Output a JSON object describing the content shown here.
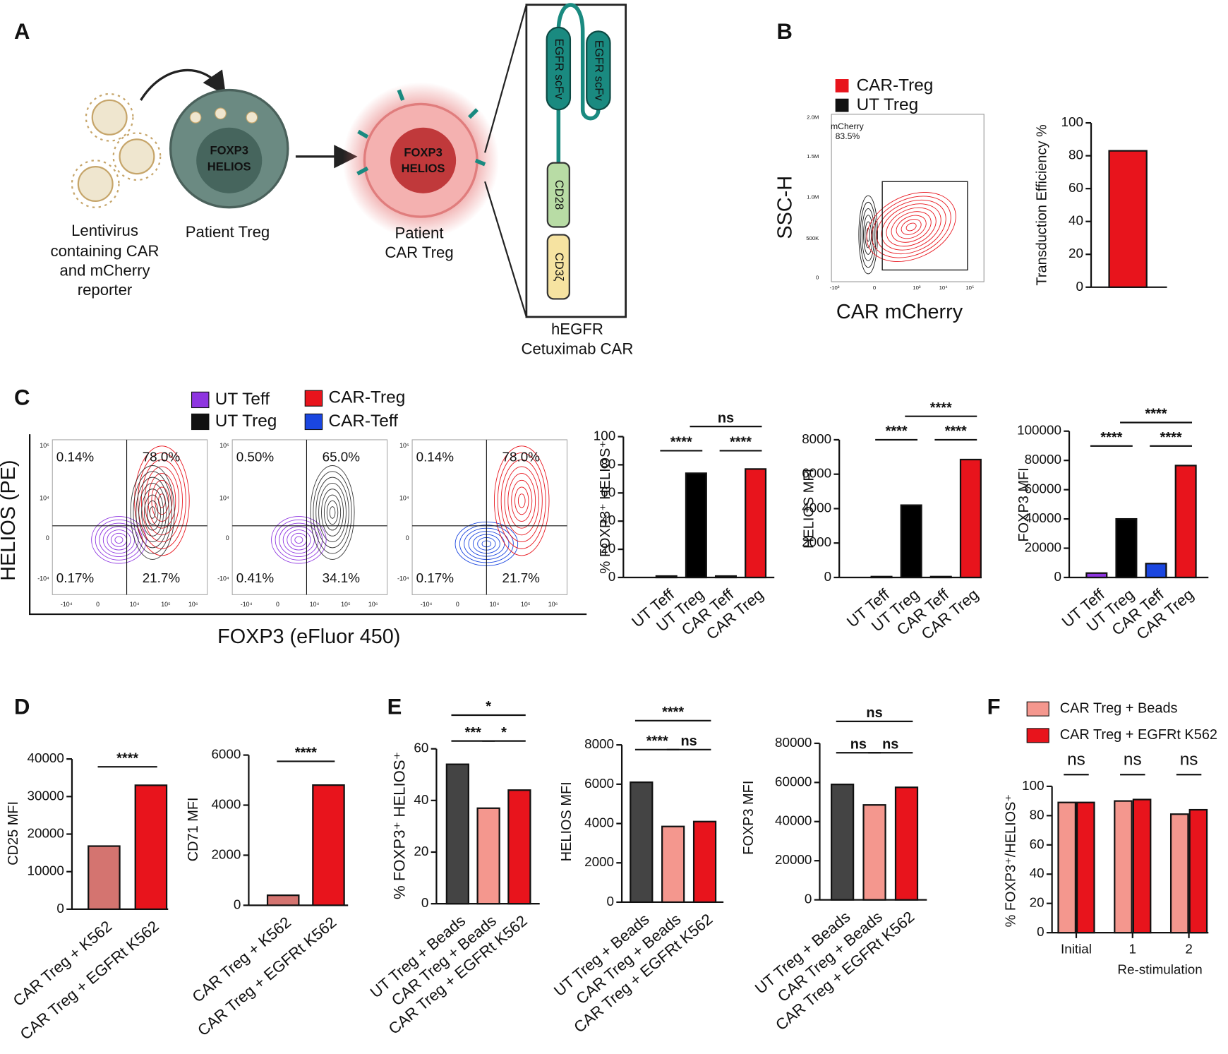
{
  "panel_labels": [
    "A",
    "B",
    "C",
    "D",
    "E",
    "F"
  ],
  "diagram": {
    "lentivirus": [
      "Lentivirus",
      "containing CAR",
      "and mCherry",
      "reporter"
    ],
    "treg_label": "Patient Treg",
    "treg_nucleus": [
      "FOXP3",
      "HELIOS"
    ],
    "car_treg_label": [
      "Patient",
      "CAR Treg"
    ],
    "car_treg_nucleus": [
      "FOXP3",
      "HELIOS"
    ],
    "car_domains": [
      "EGFR scFv",
      "EGFR scFv",
      "CD28",
      "CD3ζ"
    ],
    "car_name": [
      "hEGFR",
      "Cetuximab CAR"
    ]
  },
  "flow_b": {
    "legend": [
      {
        "name": "CAR-Treg",
        "color": "#e8141c"
      },
      {
        "name": "UT Treg",
        "color": "#111111"
      }
    ],
    "gate_name": "mCherry",
    "gate_percent": "83.5%",
    "ylabel": "SSC-H",
    "xlabel": "CAR mCherry",
    "yticks": [
      "2.0M",
      "1.5M",
      "1.0M",
      "500K",
      "0"
    ],
    "xticks": [
      "-10³",
      "0",
      "10³",
      "10⁴",
      "10⁵"
    ]
  },
  "flow_c": {
    "legend": [
      {
        "name": "UT Teff",
        "color": "#8e35e0"
      },
      {
        "name": "UT Treg",
        "color": "#111111"
      },
      {
        "name": "CAR-Treg",
        "color": "#e8141c"
      },
      {
        "name": "CAR-Teff",
        "color": "#1a46e0"
      }
    ],
    "ylabel": "HELIOS (PE)",
    "xlabel": "FOXP3 (eFluor 450)",
    "yticks": [
      "10⁵",
      "10⁴",
      "0",
      "-10⁴"
    ],
    "xticks": [
      "-10⁴",
      "0",
      "10⁴",
      "10⁵",
      "10⁶"
    ],
    "quadrants": [
      [
        "0.14%",
        "78.0%",
        "0.17%",
        "21.7%"
      ],
      [
        "0.50%",
        "65.0%",
        "0.41%",
        "34.1%"
      ],
      [
        "0.14%",
        "78.0%",
        "0.17%",
        "21.7%"
      ]
    ]
  },
  "chart_data": [
    {
      "type": "bar",
      "ylabel": "Transduction Efficiency %",
      "categories": [
        null
      ],
      "values": [
        83
      ],
      "colors": [
        "#e8141c"
      ],
      "ylim": [
        0,
        100
      ],
      "yticks": [
        0,
        20,
        40,
        60,
        80,
        100
      ],
      "annotations": []
    },
    {
      "type": "bar",
      "ylabel": "% FOXP3⁺ HELIOS⁺",
      "categories": [
        "UT Teff",
        "UT Treg",
        "CAR Teff",
        "CAR Treg"
      ],
      "values": [
        1,
        74,
        1,
        77
      ],
      "colors": [
        "#8e35e0",
        "#000000",
        "#1a46e0",
        "#e8141c"
      ],
      "ylim": [
        0,
        100
      ],
      "yticks": [
        0,
        20,
        40,
        60,
        80,
        100
      ],
      "annotations": [
        "****",
        "****",
        "ns"
      ]
    },
    {
      "type": "bar",
      "ylabel": "HELIOS MFI",
      "categories": [
        "UT Teff",
        "UT Treg",
        "CAR Teff",
        "CAR Treg"
      ],
      "values": [
        50,
        4200,
        50,
        6850
      ],
      "colors": [
        "#8e35e0",
        "#000000",
        "#1a46e0",
        "#e8141c"
      ],
      "ylim": [
        0,
        8000
      ],
      "yticks": [
        0,
        2000,
        4000,
        6000,
        8000
      ],
      "annotations": [
        "****",
        "****",
        "****"
      ]
    },
    {
      "type": "bar",
      "ylabel": "FOXP3 MFI",
      "categories": [
        "UT Teff",
        "UT Treg",
        "CAR Teff",
        "CAR Treg"
      ],
      "values": [
        3000,
        40000,
        9500,
        76500
      ],
      "colors": [
        "#8e35e0",
        "#000000",
        "#1a46e0",
        "#e8141c"
      ],
      "ylim": [
        0,
        100000
      ],
      "yticks": [
        0,
        20000,
        40000,
        60000,
        80000,
        100000
      ],
      "annotations": [
        "****",
        "****",
        "****"
      ]
    },
    {
      "type": "bar",
      "ylabel": "CD25 MFI",
      "categories": [
        "CAR Treg + K562",
        "CAR Treg + EGFRt K562"
      ],
      "values": [
        16800,
        33000
      ],
      "colors": [
        "#d47470",
        "#e8141c"
      ],
      "ylim": [
        0,
        40000
      ],
      "yticks": [
        0,
        10000,
        20000,
        30000,
        40000
      ],
      "annotations": [
        "****"
      ]
    },
    {
      "type": "bar",
      "ylabel": "CD71 MFI",
      "categories": [
        "CAR Treg + K562",
        "CAR Treg + EGFRt K562"
      ],
      "values": [
        400,
        4800
      ],
      "colors": [
        "#d47470",
        "#e8141c"
      ],
      "ylim": [
        0,
        6000
      ],
      "yticks": [
        0,
        2000,
        4000,
        6000
      ],
      "annotations": [
        "****"
      ]
    },
    {
      "type": "bar",
      "ylabel": "% FOXP3⁺ HELIOS⁺",
      "categories": [
        "UT Treg + Beads",
        "CAR Treg + Beads",
        "CAR Treg + EGFRt K562"
      ],
      "values": [
        54,
        37,
        44
      ],
      "colors": [
        "#444444",
        "#f4978e",
        "#e8141c"
      ],
      "ylim": [
        0,
        60
      ],
      "yticks": [
        0,
        20,
        40,
        60
      ],
      "annotations": [
        "***",
        "*",
        "*"
      ]
    },
    {
      "type": "bar",
      "ylabel": "HELIOS MFI",
      "categories": [
        "UT Treg + Beads",
        "CAR Treg + Beads",
        "CAR Treg + EGFRt K562"
      ],
      "values": [
        6100,
        3850,
        4100
      ],
      "colors": [
        "#444444",
        "#f4978e",
        "#e8141c"
      ],
      "ylim": [
        0,
        8000
      ],
      "yticks": [
        0,
        2000,
        4000,
        6000,
        8000
      ],
      "annotations": [
        "****",
        "ns",
        "****"
      ]
    },
    {
      "type": "bar",
      "ylabel": "FOXP3 MFI",
      "categories": [
        "UT Treg + Beads",
        "CAR Treg + Beads",
        "CAR Treg + EGFRt K562"
      ],
      "values": [
        59000,
        48500,
        57500
      ],
      "colors": [
        "#444444",
        "#f4978e",
        "#e8141c"
      ],
      "ylim": [
        0,
        80000
      ],
      "yticks": [
        0,
        20000,
        40000,
        60000,
        80000
      ],
      "annotations": [
        "ns",
        "ns",
        "ns"
      ]
    },
    {
      "type": "grouped_bar",
      "ylabel": "% FOXP3⁺/HELIOS⁺",
      "xlabel": "Re-stimulation",
      "categories": [
        "Initial",
        "1",
        "2"
      ],
      "series": [
        {
          "name": "CAR Treg + Beads",
          "color": "#f4978e",
          "values": [
            89,
            90,
            81
          ]
        },
        {
          "name": "CAR Treg + EGFRt K562",
          "color": "#e8141c",
          "values": [
            89,
            91,
            84
          ]
        }
      ],
      "ylim": [
        0,
        100
      ],
      "yticks": [
        0,
        20,
        40,
        60,
        80,
        100
      ],
      "annotations": [
        "ns",
        "ns",
        "ns"
      ]
    }
  ]
}
